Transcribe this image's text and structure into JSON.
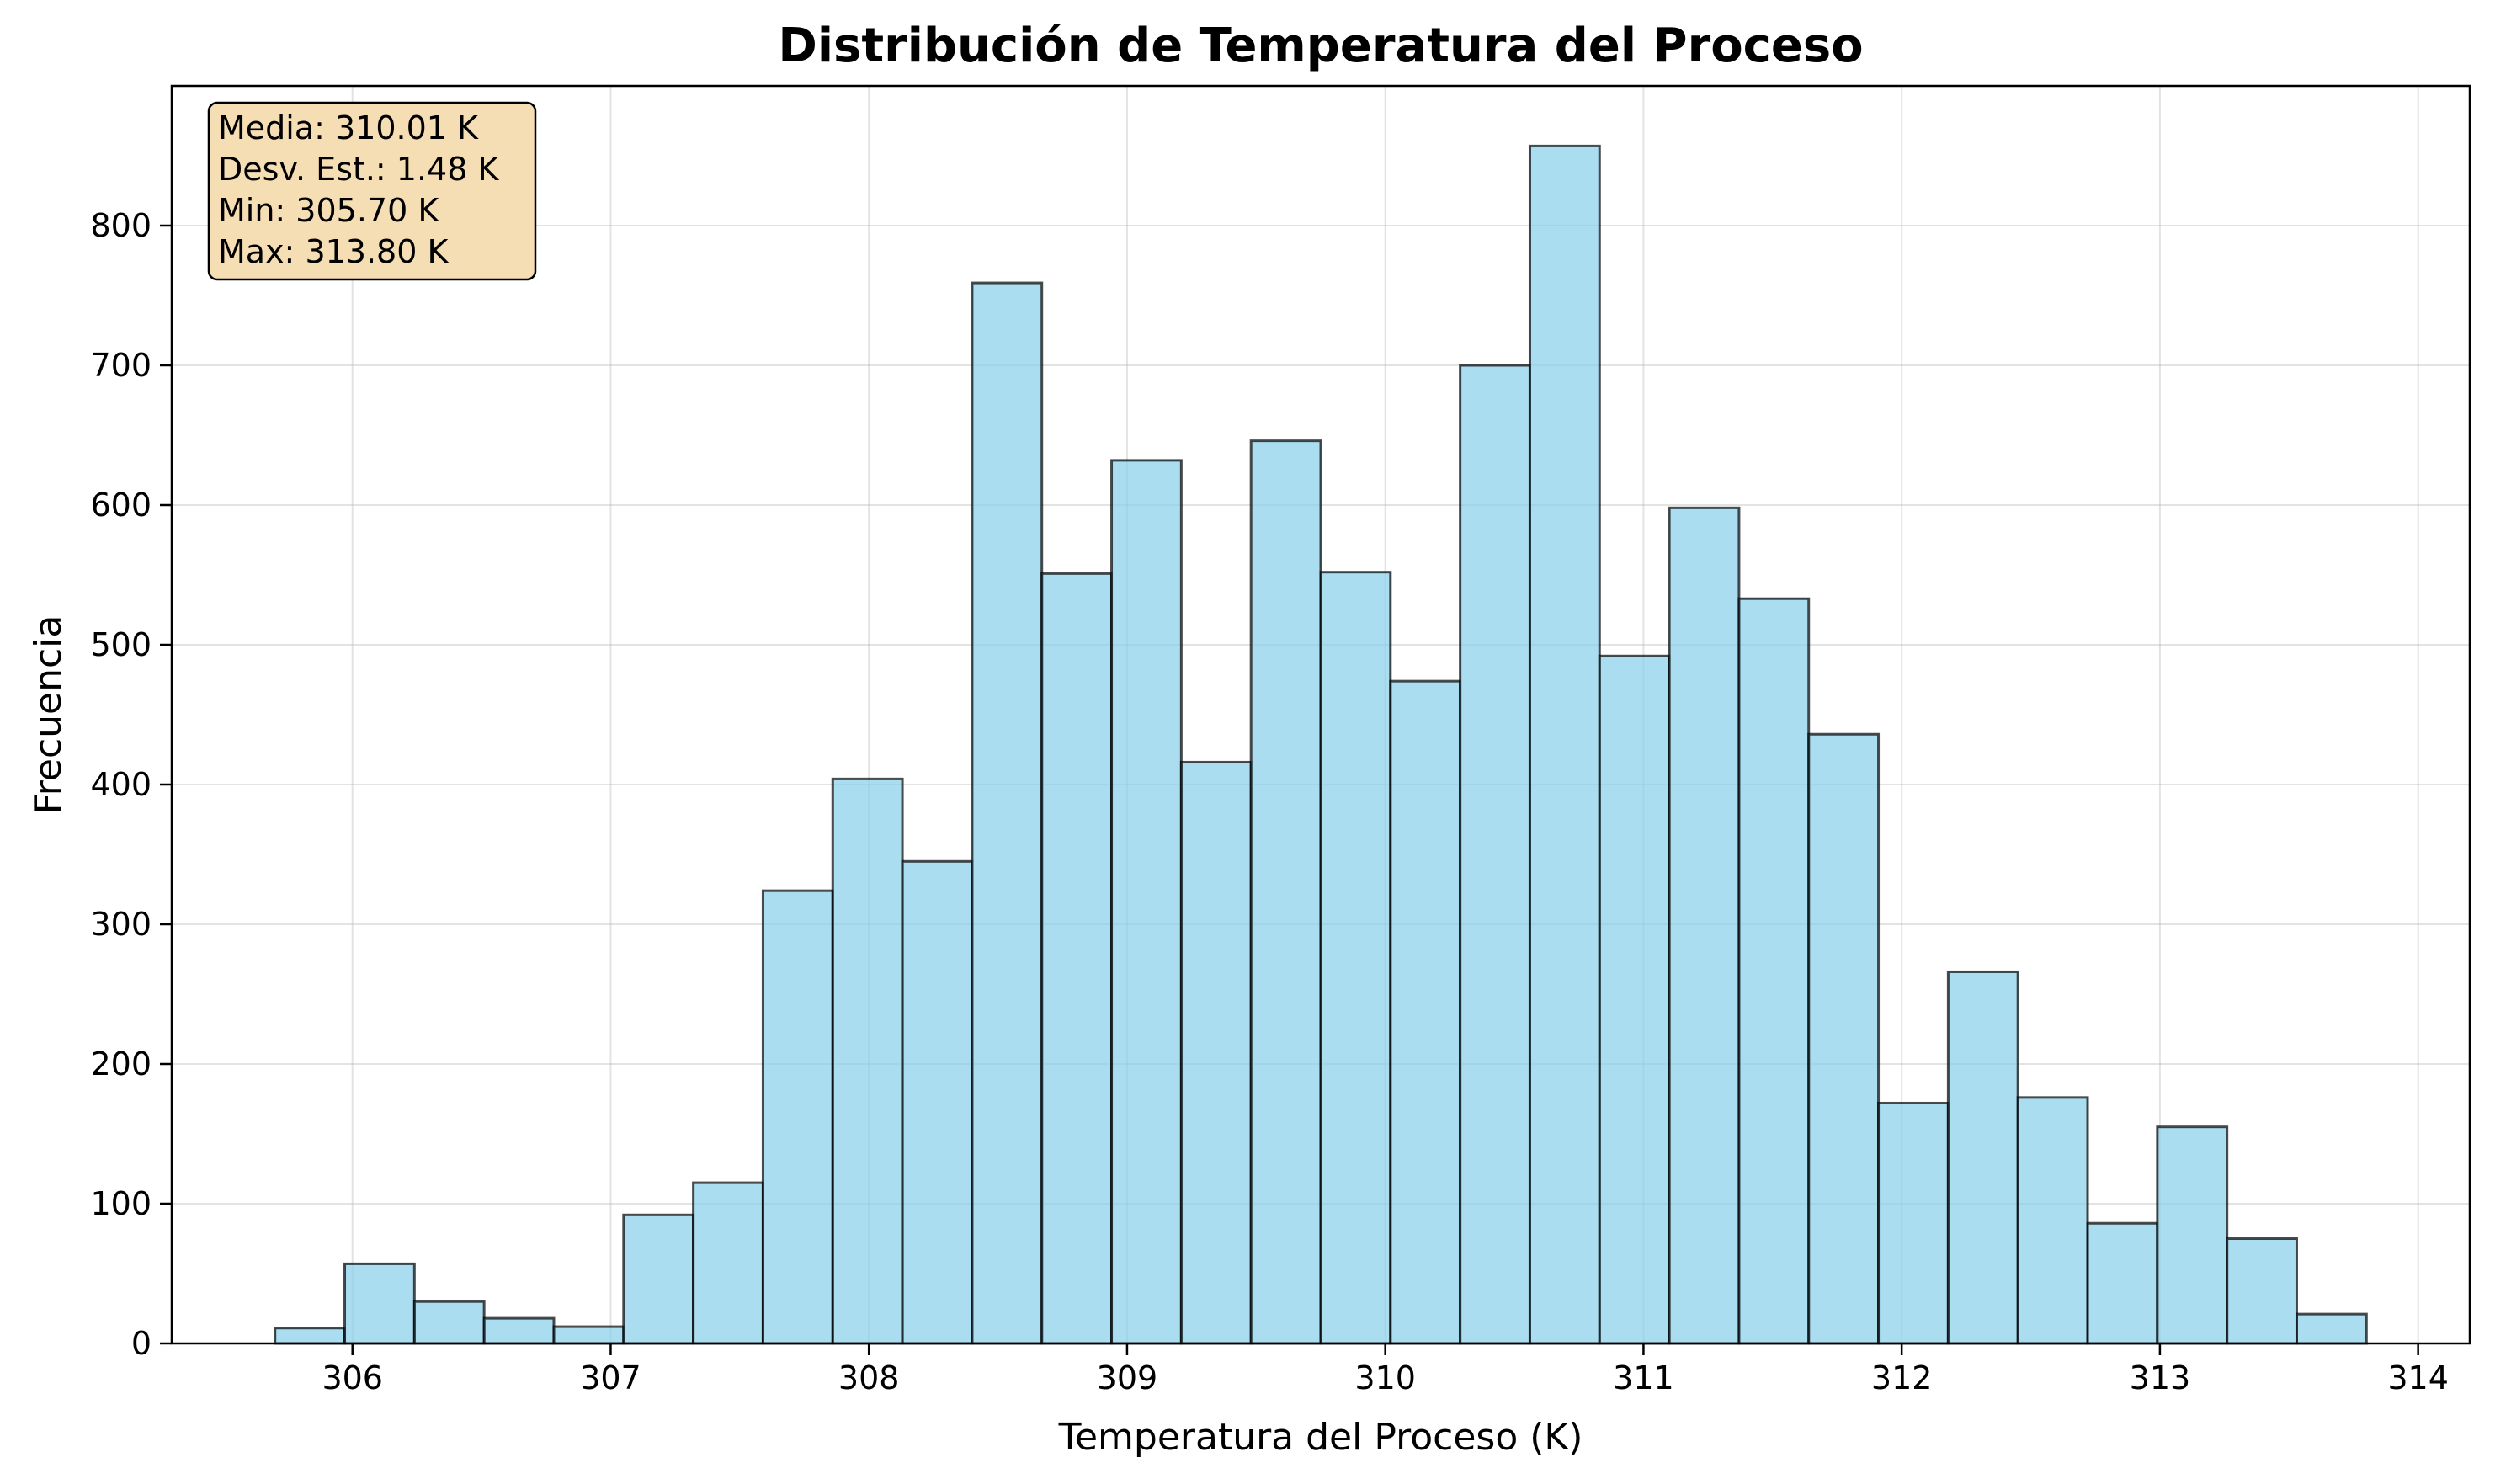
{
  "chart_data": {
    "type": "bar",
    "subtype": "histogram",
    "title": "Distribución de Temperatura del Proceso",
    "xlabel": "Temperatura del Proceso (K)",
    "ylabel": "Frecuencia",
    "xlim": [
      305.3,
      314.2
    ],
    "ylim": [
      0,
      900
    ],
    "xticks": [
      306,
      307,
      308,
      309,
      310,
      311,
      312,
      313,
      314
    ],
    "yticks": [
      0,
      100,
      200,
      300,
      400,
      500,
      600,
      700,
      800
    ],
    "grid": true,
    "bar_color": "#87CEEB",
    "edge_color": "#000000",
    "bins": {
      "start": 305.7,
      "end": 313.8,
      "count": 30,
      "values": [
        11,
        57,
        30,
        18,
        12,
        92,
        115,
        324,
        404,
        345,
        759,
        551,
        632,
        416,
        646,
        552,
        474,
        700,
        857,
        492,
        598,
        533,
        436,
        172,
        266,
        176,
        86,
        155,
        75,
        21
      ]
    },
    "stats_box": {
      "lines": [
        "Media: 310.01 K",
        "Desv. Est.: 1.48 K",
        "Min: 305.70 K",
        "Max: 313.80 K"
      ],
      "background": "#F5DEB3",
      "placement": "top-left"
    }
  }
}
